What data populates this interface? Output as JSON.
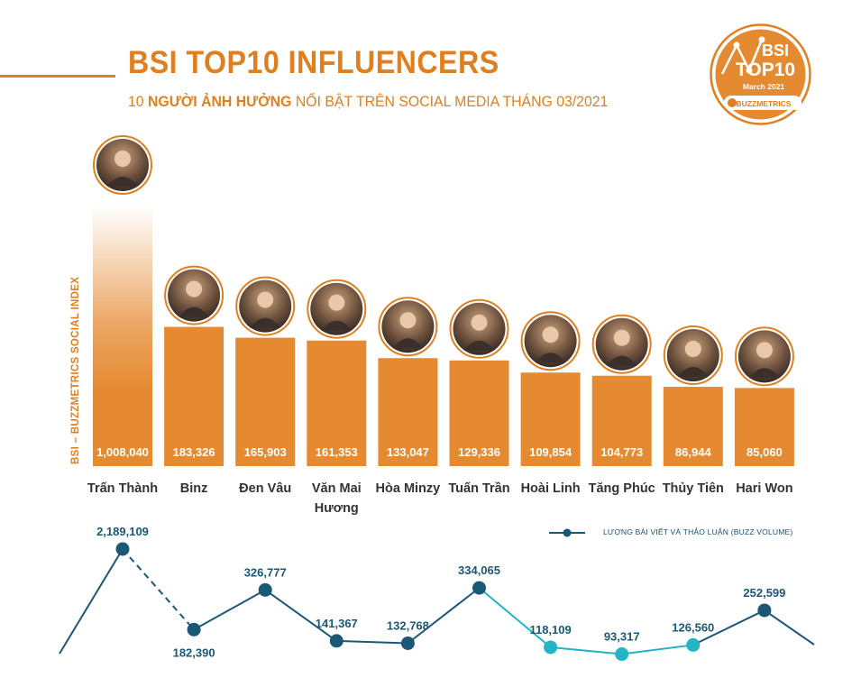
{
  "header": {
    "title": "BSI TOP10 INFLUENCERS",
    "subtitle_prefix": "10 ",
    "subtitle_bold": "NGƯỜI ẢNH HƯỞNG",
    "subtitle_rest": " NỔI BẬT TRÊN SOCIAL MEDIA THÁNG 03/2021"
  },
  "badge": {
    "line1": "BSI",
    "line2": "TOP10",
    "date": "March 2021",
    "brand": "BUZZMETRICS"
  },
  "colors": {
    "accent": "#e07f1f",
    "bar": "#e68a32",
    "line_dark": "#1b5876",
    "line_light": "#25b3c6",
    "text_dark": "#333333"
  },
  "chart_data": [
    {
      "type": "bar",
      "title": "BSI TOP10 INFLUENCERS",
      "ylabel": "BSI – BUZZMETRICS SOCIAL INDEX",
      "categories": [
        "Trấn Thành",
        "Binz",
        "Đen Vâu",
        "Văn Mai Hương",
        "Hòa Minzy",
        "Tuấn Trần",
        "Hoài Linh",
        "Tăng Phúc",
        "Thủy Tiên",
        "Hari Won"
      ],
      "values": [
        1008040,
        183326,
        165903,
        161353,
        133047,
        129336,
        109854,
        104773,
        86944,
        85060
      ],
      "value_labels": [
        "1,008,040",
        "183,326",
        "165,903",
        "161,353",
        "133,047",
        "129,336",
        "109,854",
        "104,773",
        "86,944",
        "85,060"
      ]
    },
    {
      "type": "line",
      "legend": "LƯỢNG BÀI VIẾT VÀ THẢO LUẬN (BUZZ VOLUME)",
      "categories": [
        "Trấn Thành",
        "Binz",
        "Đen Vâu",
        "Văn Mai Hương",
        "Hòa Minzy",
        "Tuấn Trần",
        "Hoài Linh",
        "Tăng Phúc",
        "Thủy Tiên",
        "Hari Won"
      ],
      "values": [
        2189109,
        182390,
        326777,
        141367,
        132768,
        334065,
        118109,
        93317,
        126560,
        252599
      ],
      "value_labels": [
        "2,189,109",
        "182,390",
        "326,777",
        "141,367",
        "132,768",
        "334,065",
        "118,109",
        "93,317",
        "126,560",
        "252,599"
      ]
    }
  ],
  "avatar_icon": "person-portrait-icon"
}
